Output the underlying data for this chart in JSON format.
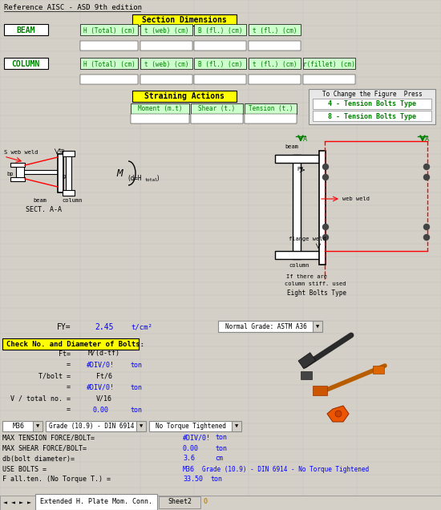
{
  "title": "Reference AISC - ASD 9th edition",
  "bg_color": "#d4d0c8",
  "cell_bg": "#ffffff",
  "grid_color": "#a0a0a0",
  "header_yellow_bg": "#ffff00",
  "header_yellow_fg": "#000000",
  "green_cell_bg": "#ccffcc",
  "green_cell_fg": "#008000",
  "blue_text": "#0000ff",
  "red_text": "#ff0000",
  "section_dims_label": "Section Dimensions",
  "beam_label": "BEAM",
  "column_label": "COLUMN",
  "beam_headers": [
    "H (Total) (cm)",
    "t (web) (cm)",
    "B (fl.) (cm)",
    "t (fl.) (cm)"
  ],
  "column_headers": [
    "H (Total) (cm)",
    "t (web) (cm)",
    "B (fl.) (cm)",
    "t (fl.) (cm)",
    "r(fillet) (cm)"
  ],
  "straining_label": "Straining Actions",
  "straining_headers": [
    "Moment (m.t)",
    "Shear (t.)",
    "Tension (t.)"
  ],
  "btn1": "4 - Tension Bolts Type",
  "btn2": "8 - Tension Bolts Type",
  "btn_prompt": "To Change the Figure  Press",
  "fy_label": "FY=",
  "fy_value": "2.45",
  "fy_unit": "t/cm²",
  "dropdown_grade": "Normal Grade: ASTM A36",
  "check_label": "Check No. and Diameter of Bolts:",
  "ft_label": "Ft=",
  "ft_formula": "M/(d-tf)",
  "eq1_val": "#DIV/0!",
  "eq1_unit": "ton",
  "tbolt_label": "T/bolt =",
  "tbolt_formula": "Ft/6",
  "eq2_val": "#DIV/0!",
  "eq2_unit": "ton",
  "vtotal_label": "V / total no. =",
  "vtotal_formula": "V/16",
  "eq3_val": "0.00",
  "eq3_unit": "ton",
  "dd1": "M36",
  "dd2": "Grade (10.9) - DIN 6914",
  "dd3": "No Torque Tightened",
  "max_tension_label": "MAX TENSION FORCE/BOLT=",
  "max_tension_val": "#DIV/0!",
  "max_tension_unit": "ton",
  "max_shear_label": "MAX SHEAR FORCE/BOLT=",
  "max_shear_val": "0.00",
  "max_shear_unit": "ton",
  "db_label": "db(bolt diameter)=",
  "db_val": "3.6",
  "db_unit": "cm",
  "use_bolts_label": "USE BOLTS =",
  "use_bolts_val": "M36",
  "use_bolts_desc": "Grade (10.9) - DIN 6914 - No Torque Tightened",
  "fall_label": "F all.ten. (No Torque T.) =",
  "fall_val": "33.50",
  "fall_unit": "ton",
  "tab_label": "Extended H. Plate Mom. Conn.",
  "tab2_label": "Sheet2",
  "eight_bolts_type": "Eight Bolts Type"
}
